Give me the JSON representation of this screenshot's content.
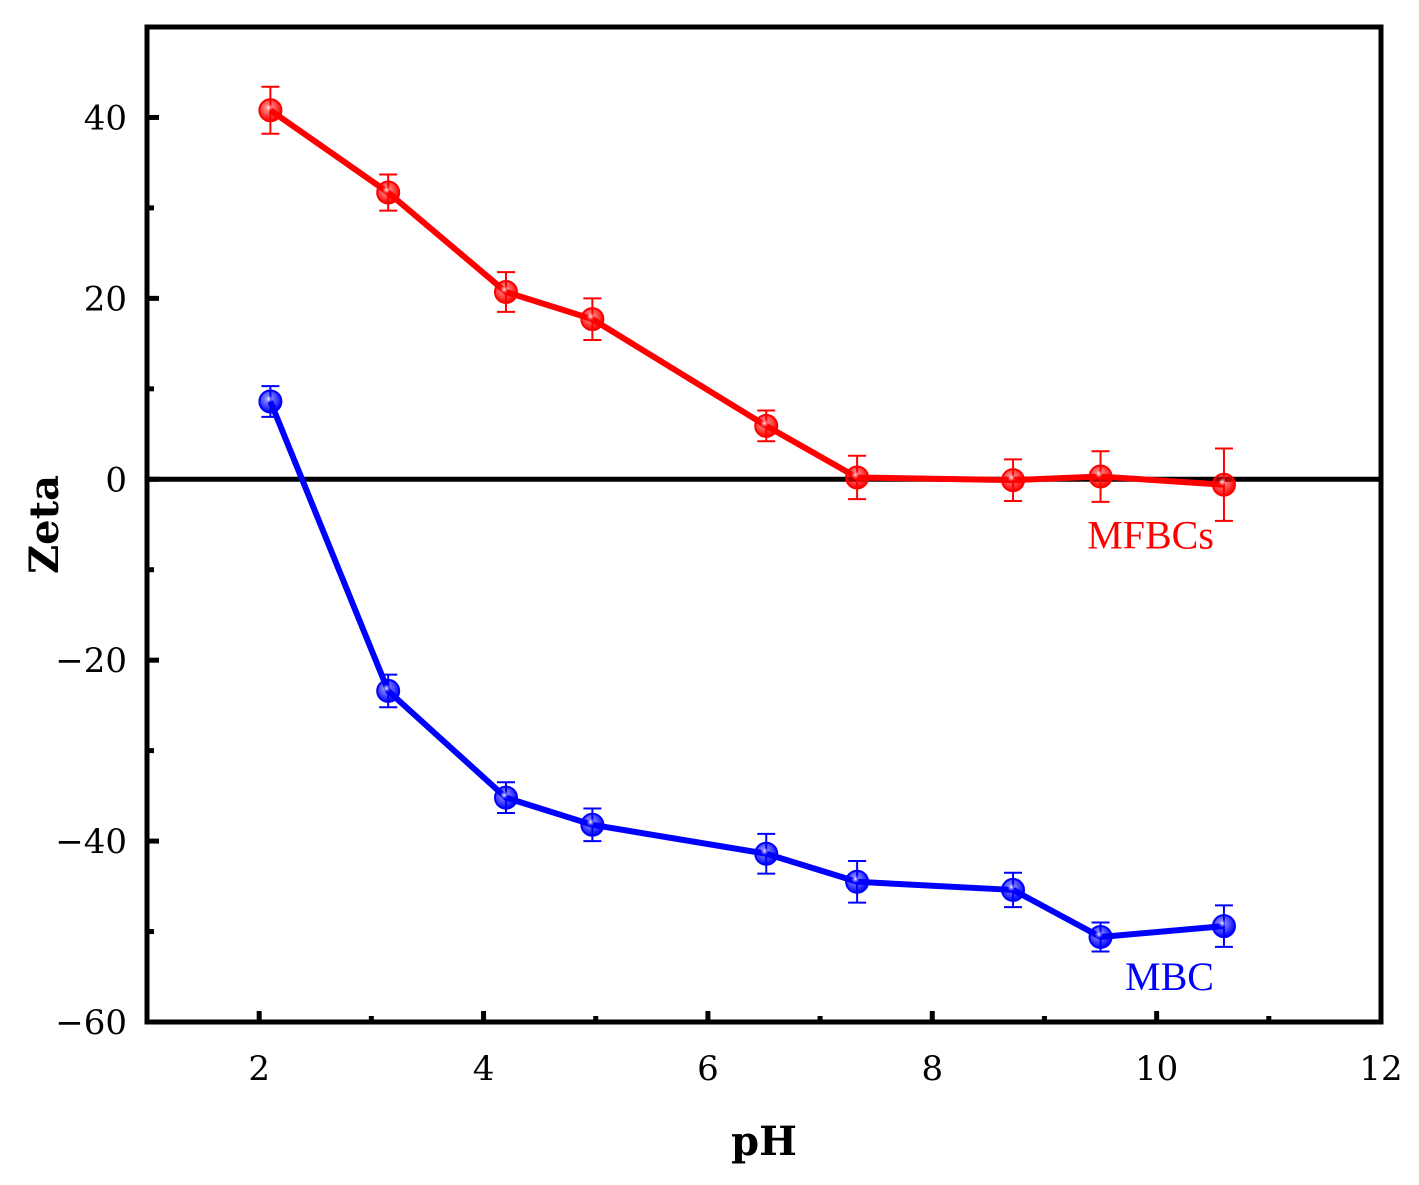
{
  "chart_data": {
    "type": "line",
    "title": "",
    "xlabel": "pH",
    "ylabel": "Zeta",
    "xlim": [
      1,
      12
    ],
    "ylim": [
      -60,
      50
    ],
    "x_ticks": [
      2,
      4,
      6,
      8,
      10,
      12
    ],
    "y_ticks": [
      -60,
      -40,
      -20,
      0,
      20,
      40
    ],
    "zero_line": true,
    "grid": false,
    "series": [
      {
        "name": "MFBCs",
        "color": "#ff0000",
        "label_text": "MFBCs",
        "x": [
          2.1,
          3.15,
          4.2,
          4.97,
          6.52,
          7.33,
          8.72,
          9.5,
          10.6
        ],
        "y": [
          40.8,
          31.7,
          20.7,
          17.7,
          5.9,
          0.2,
          -0.1,
          0.3,
          -0.6
        ],
        "err": [
          2.6,
          2.0,
          2.2,
          2.3,
          1.7,
          2.4,
          2.3,
          2.8,
          4.0
        ]
      },
      {
        "name": "MBC",
        "color": "#0000ff",
        "label_text": "MBC",
        "x": [
          2.1,
          3.15,
          4.2,
          4.97,
          6.52,
          7.33,
          8.72,
          9.5,
          10.6
        ],
        "y": [
          8.6,
          -23.4,
          -35.2,
          -38.2,
          -41.4,
          -44.5,
          -45.4,
          -50.6,
          -49.4
        ],
        "err": [
          1.7,
          1.8,
          1.7,
          1.8,
          2.2,
          2.3,
          1.9,
          1.6,
          2.3
        ]
      }
    ]
  }
}
